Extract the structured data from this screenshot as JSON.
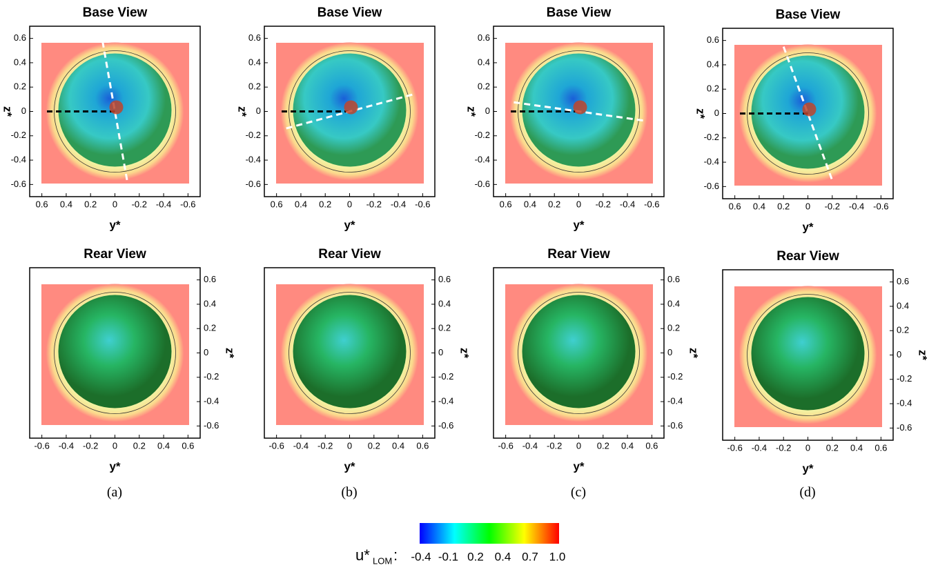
{
  "panels": [
    {
      "title": "Base View",
      "xlabel": "y*",
      "ylabel": "z*",
      "xticks": [
        0.6,
        0.4,
        0.2,
        0,
        -0.2,
        -0.4,
        -0.6
      ],
      "xlim": [
        0.7,
        -0.7
      ],
      "yticks": [
        0.6,
        0.4,
        0.2,
        0,
        -0.2,
        -0.4,
        -0.6
      ],
      "ylim": [
        -0.7,
        0.7
      ]
    },
    {
      "title": "Base View",
      "xlabel": "y*",
      "ylabel": "z*",
      "xticks": [
        0.6,
        0.4,
        0.2,
        0,
        -0.2,
        -0.4,
        -0.6
      ],
      "xlim": [
        0.7,
        -0.7
      ],
      "yticks": [
        0.6,
        0.4,
        0.2,
        0,
        -0.2,
        -0.4,
        -0.6
      ],
      "ylim": [
        -0.7,
        0.7
      ]
    },
    {
      "title": "Base View",
      "xlabel": "y*",
      "ylabel": "z*",
      "xticks": [
        0.6,
        0.4,
        0.2,
        0,
        -0.2,
        -0.4,
        -0.6
      ],
      "xlim": [
        0.7,
        -0.7
      ],
      "yticks": [
        0.6,
        0.4,
        0.2,
        0,
        -0.2,
        -0.4,
        -0.6
      ],
      "ylim": [
        -0.7,
        0.7
      ]
    },
    {
      "title": "Base View",
      "xlabel": "y*",
      "ylabel": "z*",
      "xticks": [
        0.6,
        0.4,
        0.2,
        0,
        -0.2,
        -0.4,
        -0.6
      ],
      "xlim": [
        0.7,
        -0.7
      ],
      "yticks": [
        0.6,
        0.4,
        0.2,
        0,
        -0.2,
        -0.4,
        -0.6
      ],
      "ylim": [
        -0.7,
        0.7
      ]
    },
    {
      "title": "Rear View",
      "xlabel": "y*",
      "ylabel": "z*",
      "xticks": [
        -0.6,
        -0.4,
        -0.2,
        0,
        0.2,
        0.4,
        0.6
      ],
      "xlim": [
        -0.7,
        0.7
      ],
      "yticks": [
        0.6,
        0.4,
        0.2,
        0,
        -0.2,
        -0.4,
        -0.6
      ],
      "ylim": [
        -0.7,
        0.7
      ]
    },
    {
      "title": "Rear View",
      "xlabel": "y*",
      "ylabel": "z*",
      "xticks": [
        -0.6,
        -0.4,
        -0.2,
        0,
        0.2,
        0.4,
        0.6
      ],
      "xlim": [
        -0.7,
        0.7
      ],
      "yticks": [
        0.6,
        0.4,
        0.2,
        0,
        -0.2,
        -0.4,
        -0.6
      ],
      "ylim": [
        -0.7,
        0.7
      ]
    },
    {
      "title": "Rear View",
      "xlabel": "y*",
      "ylabel": "z*",
      "xticks": [
        -0.6,
        -0.4,
        -0.2,
        0,
        0.2,
        0.4,
        0.6
      ],
      "xlim": [
        -0.7,
        0.7
      ],
      "yticks": [
        0.6,
        0.4,
        0.2,
        0,
        -0.2,
        -0.4,
        -0.6
      ],
      "ylim": [
        -0.7,
        0.7
      ]
    },
    {
      "title": "Rear View",
      "xlabel": "y*",
      "ylabel": "z*",
      "xticks": [
        -0.6,
        -0.4,
        -0.2,
        0,
        0.2,
        0.4,
        0.6
      ],
      "xlim": [
        -0.7,
        0.7
      ],
      "yticks": [
        0.6,
        0.4,
        0.2,
        0,
        -0.2,
        -0.4,
        -0.6
      ],
      "ylim": [
        -0.7,
        0.7
      ]
    }
  ],
  "captions": [
    "(a)",
    "(b)",
    "(c)",
    "(d)"
  ],
  "colorbar": {
    "label": "u*",
    "sub": "LOM",
    "sep": ":",
    "ticks": [
      -0.4,
      -0.1,
      0.2,
      0.4,
      0.7,
      {
        "value": 1,
        "label": "1.0"
      }
    ]
  }
}
